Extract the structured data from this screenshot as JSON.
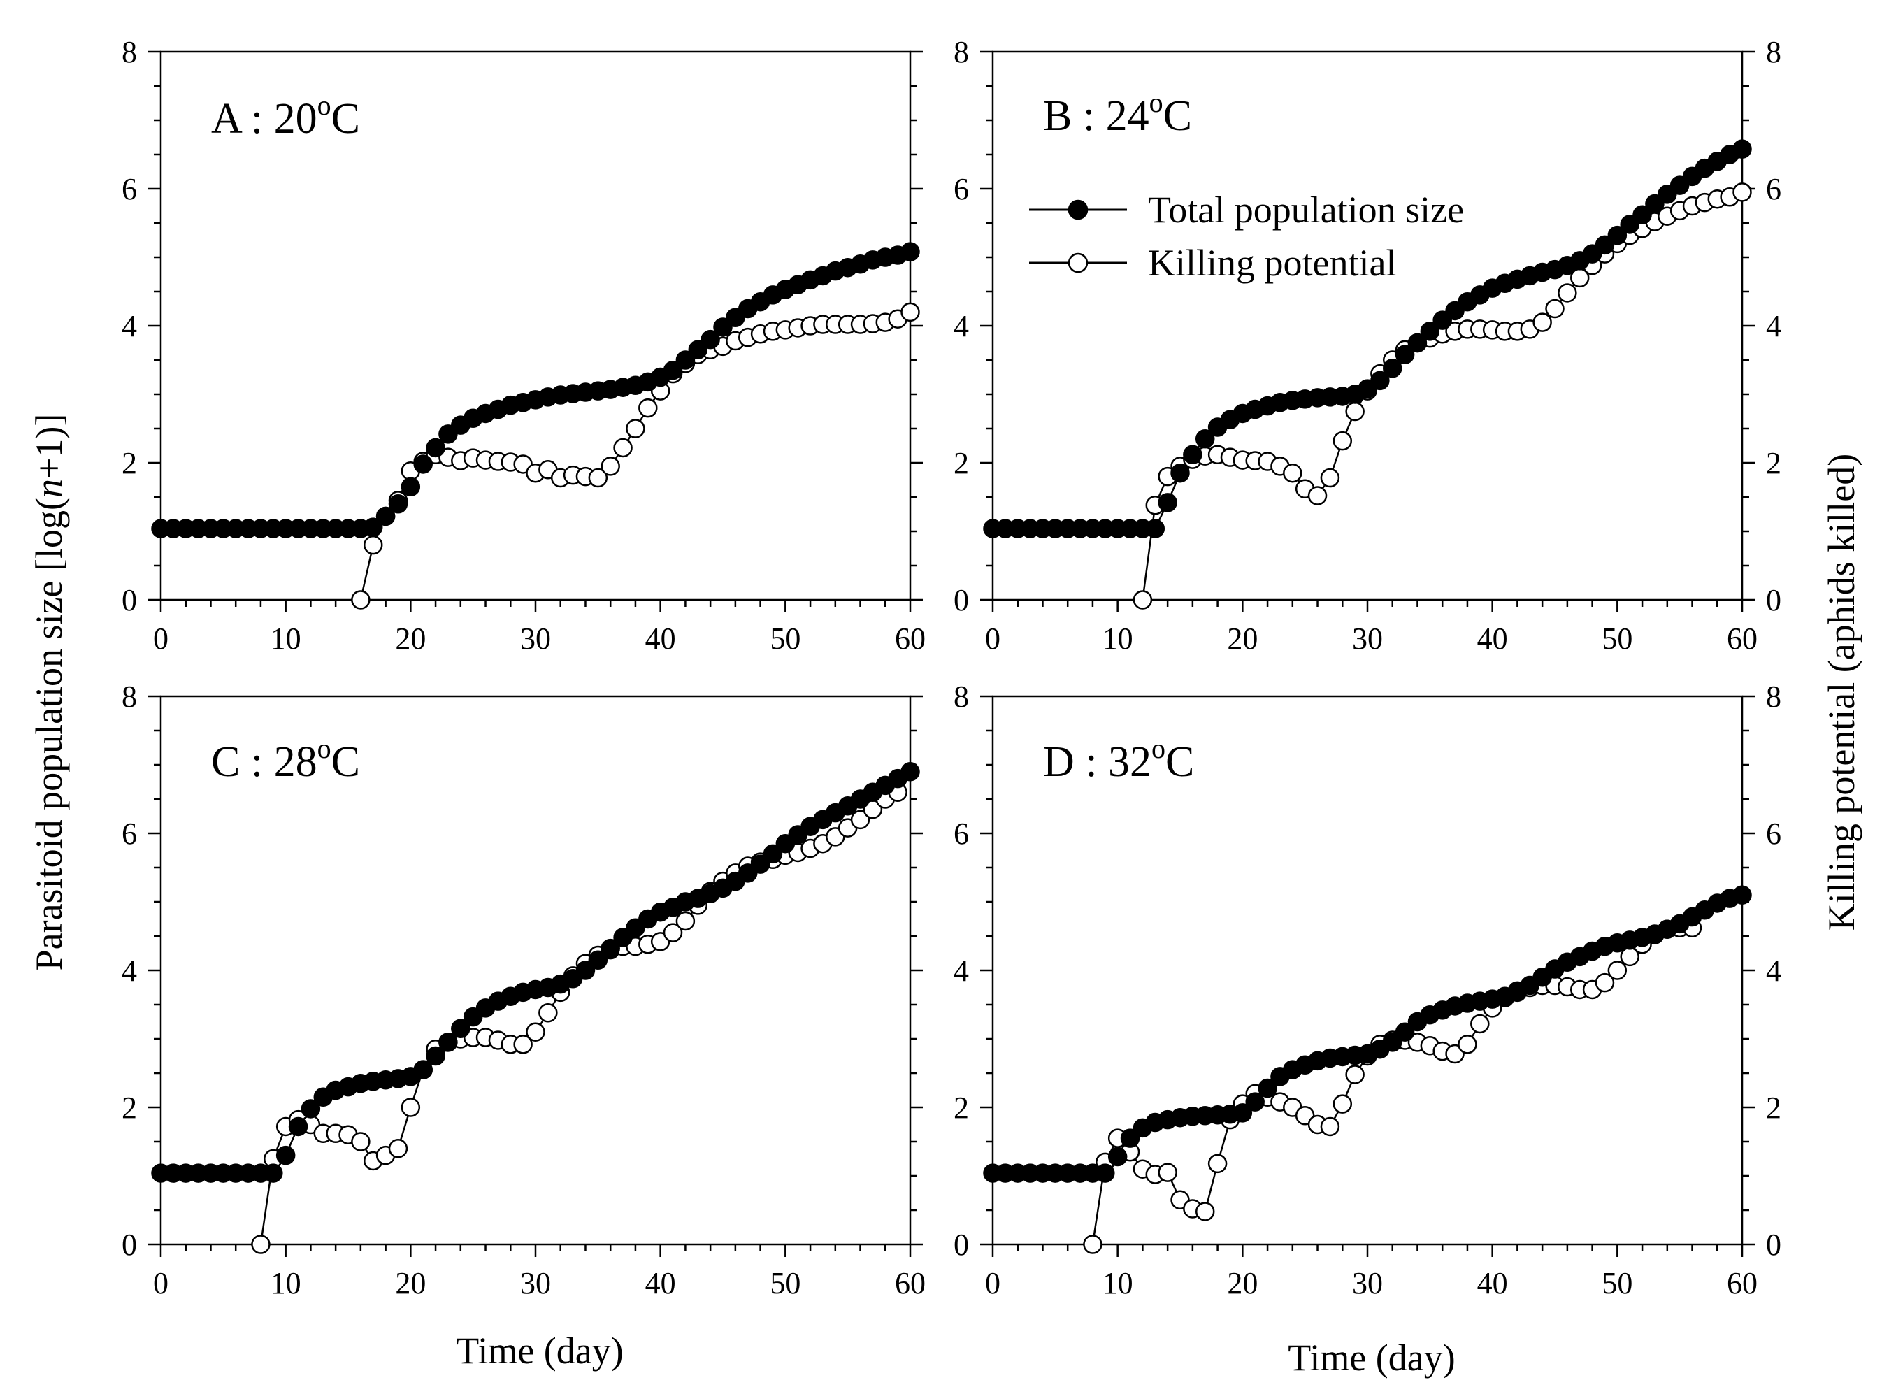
{
  "figure": {
    "y_axis_left_title": "Parasitoid population size [log(n+1)]",
    "y_axis_left_prefix": "Parasitoid population size [log(",
    "y_axis_left_italic": "n",
    "y_axis_left_suffix": "+1)]",
    "y_axis_right_title": "Killing potential (aphids killed)",
    "x_axis_title": "Time (day)"
  },
  "legend": {
    "total_label": "Total population size",
    "killing_label": "Killing potential"
  },
  "chart_data": [
    {
      "type": "line",
      "panel_label": "A : 20",
      "panel_unit": "C",
      "panel_sup": "o",
      "panel_title": "A : 20°C",
      "xlim": [
        0,
        60
      ],
      "ylim": [
        0,
        8
      ],
      "x_ticks": [
        0,
        10,
        20,
        30,
        40,
        50,
        60
      ],
      "y_ticks": [
        0,
        2,
        4,
        6,
        8
      ],
      "series": [
        {
          "name": "Total population size",
          "marker": "filled-circle",
          "x_start": 0,
          "values": [
            1.04,
            1.04,
            1.04,
            1.04,
            1.04,
            1.04,
            1.04,
            1.04,
            1.04,
            1.04,
            1.04,
            1.04,
            1.04,
            1.04,
            1.04,
            1.04,
            1.04,
            1.06,
            1.22,
            1.4,
            1.65,
            1.98,
            2.22,
            2.42,
            2.55,
            2.65,
            2.72,
            2.78,
            2.84,
            2.88,
            2.92,
            2.96,
            2.99,
            3.01,
            3.03,
            3.05,
            3.07,
            3.1,
            3.13,
            3.18,
            3.25,
            3.35,
            3.5,
            3.65,
            3.8,
            3.98,
            4.12,
            4.25,
            4.35,
            4.45,
            4.53,
            4.6,
            4.67,
            4.73,
            4.8,
            4.85,
            4.9,
            4.96,
            5.0,
            5.03,
            5.08
          ]
        },
        {
          "name": "Killing potential",
          "marker": "open-circle",
          "x_start": 16,
          "values": [
            0,
            0.8,
            1.22,
            1.45,
            1.88,
            2.02,
            2.12,
            2.08,
            2.03,
            2.07,
            2.04,
            2.02,
            2.01,
            1.98,
            1.85,
            1.9,
            1.78,
            1.82,
            1.8,
            1.78,
            1.95,
            2.22,
            2.5,
            2.8,
            3.05,
            3.3,
            3.45,
            3.58,
            3.65,
            3.7,
            3.78,
            3.83,
            3.88,
            3.92,
            3.94,
            3.97,
            4.0,
            4.02,
            4.02,
            4.02,
            4.02,
            4.03,
            4.05,
            4.1,
            4.2
          ]
        }
      ]
    },
    {
      "type": "line",
      "panel_label": "B : 24",
      "panel_unit": "C",
      "panel_sup": "o",
      "panel_title": "B : 24°C",
      "xlim": [
        0,
        60
      ],
      "ylim": [
        0,
        8
      ],
      "x_ticks": [
        0,
        10,
        20,
        30,
        40,
        50,
        60
      ],
      "y_ticks": [
        0,
        2,
        4,
        6,
        8
      ],
      "series": [
        {
          "name": "Total population size",
          "marker": "filled-circle",
          "x_start": 0,
          "values": [
            1.04,
            1.04,
            1.04,
            1.04,
            1.04,
            1.04,
            1.04,
            1.04,
            1.04,
            1.04,
            1.04,
            1.04,
            1.04,
            1.04,
            1.42,
            1.85,
            2.12,
            2.35,
            2.52,
            2.63,
            2.72,
            2.78,
            2.83,
            2.88,
            2.91,
            2.93,
            2.95,
            2.96,
            2.97,
            3.0,
            3.08,
            3.2,
            3.38,
            3.58,
            3.75,
            3.92,
            4.08,
            4.22,
            4.35,
            4.45,
            4.55,
            4.62,
            4.68,
            4.73,
            4.78,
            4.82,
            4.88,
            4.95,
            5.05,
            5.18,
            5.32,
            5.48,
            5.62,
            5.78,
            5.92,
            6.05,
            6.18,
            6.3,
            6.4,
            6.5,
            6.58
          ]
        },
        {
          "name": "Killing potential",
          "marker": "open-circle",
          "x_start": 12,
          "values": [
            0,
            1.38,
            1.8,
            1.95,
            2.05,
            2.1,
            2.12,
            2.08,
            2.04,
            2.03,
            2.02,
            1.95,
            1.85,
            1.62,
            1.52,
            1.78,
            2.32,
            2.75,
            3.05,
            3.3,
            3.5,
            3.65,
            3.75,
            3.82,
            3.88,
            3.92,
            3.95,
            3.95,
            3.94,
            3.92,
            3.92,
            3.95,
            4.05,
            4.25,
            4.48,
            4.7,
            4.88,
            5.05,
            5.2,
            5.32,
            5.42,
            5.52,
            5.6,
            5.68,
            5.75,
            5.8,
            5.85,
            5.88,
            5.95
          ]
        }
      ]
    },
    {
      "type": "line",
      "panel_label": "C : 28",
      "panel_unit": "C",
      "panel_sup": "o",
      "panel_title": "C : 28°C",
      "xlim": [
        0,
        60
      ],
      "ylim": [
        0,
        8
      ],
      "x_ticks": [
        0,
        10,
        20,
        30,
        40,
        50,
        60
      ],
      "y_ticks": [
        0,
        2,
        4,
        6,
        8
      ],
      "series": [
        {
          "name": "Total population size",
          "marker": "filled-circle",
          "x_start": 0,
          "values": [
            1.04,
            1.04,
            1.04,
            1.04,
            1.04,
            1.04,
            1.04,
            1.04,
            1.04,
            1.04,
            1.3,
            1.72,
            1.98,
            2.15,
            2.25,
            2.3,
            2.35,
            2.38,
            2.4,
            2.42,
            2.45,
            2.55,
            2.75,
            2.95,
            3.15,
            3.32,
            3.45,
            3.55,
            3.62,
            3.68,
            3.72,
            3.75,
            3.8,
            3.88,
            4.0,
            4.15,
            4.32,
            4.48,
            4.62,
            4.75,
            4.85,
            4.92,
            5.0,
            5.05,
            5.12,
            5.2,
            5.3,
            5.42,
            5.55,
            5.7,
            5.85,
            5.98,
            6.1,
            6.2,
            6.3,
            6.4,
            6.5,
            6.6,
            6.7,
            6.8,
            6.9
          ]
        },
        {
          "name": "Killing potential",
          "marker": "open-circle",
          "x_start": 8,
          "values": [
            0,
            1.25,
            1.72,
            1.82,
            1.75,
            1.62,
            1.62,
            1.6,
            1.5,
            1.22,
            1.3,
            1.4,
            2.0,
            2.55,
            2.85,
            2.95,
            3.0,
            3.02,
            3.02,
            2.98,
            2.92,
            2.92,
            3.1,
            3.38,
            3.68,
            3.92,
            4.1,
            4.22,
            4.3,
            4.35,
            4.35,
            4.38,
            4.42,
            4.55,
            4.72,
            4.95,
            5.15,
            5.3,
            5.42,
            5.52,
            5.58,
            5.62,
            5.68,
            5.72,
            5.78,
            5.85,
            5.95,
            6.08,
            6.2,
            6.35,
            6.5,
            6.6
          ]
        }
      ]
    },
    {
      "type": "line",
      "panel_label": "D : 32",
      "panel_unit": "C",
      "panel_sup": "o",
      "panel_title": "D : 32°C",
      "xlim": [
        0,
        60
      ],
      "ylim": [
        0,
        8
      ],
      "x_ticks": [
        0,
        10,
        20,
        30,
        40,
        50,
        60
      ],
      "y_ticks": [
        0,
        2,
        4,
        6,
        8
      ],
      "series": [
        {
          "name": "Total population size",
          "marker": "filled-circle",
          "x_start": 0,
          "values": [
            1.04,
            1.04,
            1.04,
            1.04,
            1.04,
            1.04,
            1.04,
            1.04,
            1.04,
            1.04,
            1.28,
            1.55,
            1.7,
            1.78,
            1.82,
            1.85,
            1.87,
            1.88,
            1.89,
            1.9,
            1.92,
            2.08,
            2.28,
            2.45,
            2.55,
            2.62,
            2.68,
            2.72,
            2.74,
            2.76,
            2.78,
            2.85,
            2.95,
            3.1,
            3.25,
            3.35,
            3.42,
            3.48,
            3.52,
            3.55,
            3.58,
            3.62,
            3.68,
            3.78,
            3.9,
            4.02,
            4.12,
            4.2,
            4.28,
            4.35,
            4.4,
            4.44,
            4.48,
            4.53,
            4.6,
            4.68,
            4.78,
            4.88,
            4.98,
            5.05,
            5.1
          ]
        },
        {
          "name": "Killing potential",
          "marker": "open-circle",
          "x_start": 8,
          "values": [
            0,
            1.2,
            1.55,
            1.35,
            1.1,
            1.02,
            1.05,
            0.65,
            0.52,
            0.48,
            1.18,
            1.82,
            2.05,
            2.2,
            2.15,
            2.08,
            2.0,
            1.88,
            1.75,
            1.72,
            2.05,
            2.48,
            2.75,
            2.92,
            2.98,
            2.98,
            2.95,
            2.9,
            2.82,
            2.78,
            2.92,
            3.22,
            3.45,
            3.6,
            3.7,
            3.75,
            3.78,
            3.78,
            3.76,
            3.72,
            3.72,
            3.82,
            4.0,
            4.2,
            4.38,
            4.52,
            4.6,
            4.62,
            4.62
          ]
        }
      ]
    }
  ]
}
